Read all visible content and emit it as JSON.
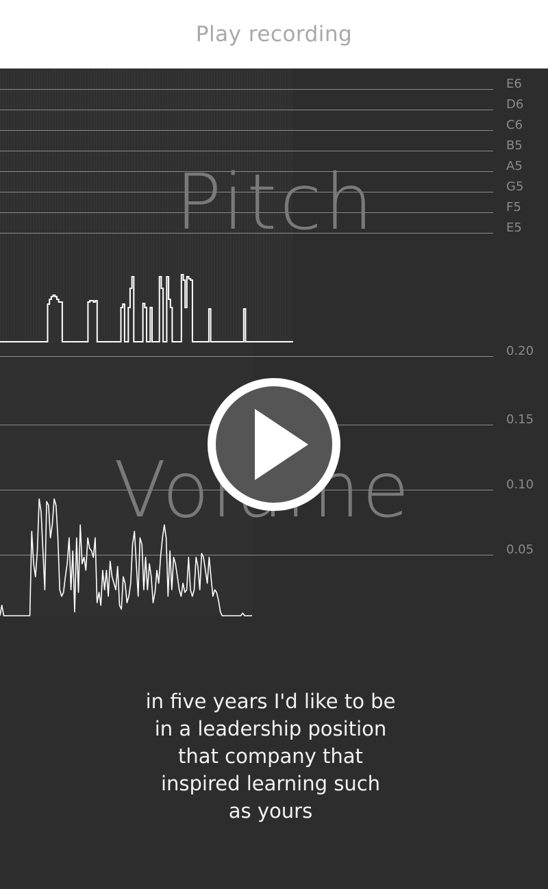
{
  "header": {
    "title": "Play recording"
  },
  "pitch": {
    "label": "Pitch",
    "notes": [
      "E6",
      "D6",
      "C6",
      "B5",
      "A5",
      "G5",
      "F5",
      "E5"
    ],
    "trace": [
      0,
      0,
      0,
      0,
      0,
      0,
      0,
      0,
      0,
      0,
      0,
      0,
      0,
      0,
      0,
      0,
      0,
      0,
      0,
      0,
      0,
      0,
      0,
      0,
      0,
      0,
      0.55,
      0.62,
      0.66,
      0.68,
      0.66,
      0.62,
      0.58,
      0.58,
      0,
      0,
      0,
      0,
      0,
      0,
      0,
      0,
      0,
      0,
      0,
      0,
      0,
      0,
      0.58,
      0.6,
      0.6,
      0.58,
      0.6,
      0,
      0,
      0,
      0,
      0,
      0,
      0,
      0,
      0,
      0,
      0,
      0,
      0,
      0.5,
      0.55,
      0,
      0,
      0.5,
      0.78,
      0.95,
      0,
      0,
      0,
      0,
      0,
      0.56,
      0.5,
      0,
      0,
      0.5,
      0,
      0,
      0,
      0,
      0.95,
      0.78,
      0,
      0,
      0.95,
      0.62,
      0.5,
      0,
      0,
      0,
      0,
      0,
      0.98,
      0.9,
      0.5,
      0.95,
      0.92,
      0.9,
      0,
      0,
      0,
      0,
      0,
      0,
      0,
      0,
      0,
      0.48,
      0,
      0,
      0,
      0,
      0,
      0,
      0,
      0,
      0,
      0,
      0,
      0,
      0,
      0,
      0,
      0,
      0,
      0,
      0.48,
      0,
      0,
      0,
      0,
      0,
      0,
      0,
      0,
      0,
      0,
      0,
      0,
      0,
      0,
      0,
      0,
      0,
      0,
      0,
      0,
      0,
      0,
      0,
      0,
      0,
      0,
      0
    ]
  },
  "volume": {
    "label": "Volume",
    "ticks": [
      "0.20",
      "0.15",
      "0.10",
      "0.05"
    ],
    "ylim": [
      0,
      0.2
    ],
    "trace": [
      0,
      0.008,
      0,
      0,
      0,
      0,
      0,
      0,
      0,
      0,
      0,
      0,
      0,
      0,
      0,
      0,
      0,
      0.065,
      0.04,
      0.03,
      0.05,
      0.09,
      0.08,
      0.05,
      0.02,
      0.088,
      0.085,
      0.06,
      0.07,
      0.09,
      0.085,
      0.06,
      0.02,
      0.015,
      0.018,
      0.03,
      0.04,
      0.06,
      0.02,
      0.05,
      0.003,
      0.06,
      0.018,
      0.07,
      0.04,
      0.045,
      0.035,
      0.06,
      0.052,
      0.05,
      0.045,
      0.06,
      0.01,
      0.018,
      0.008,
      0.035,
      0.02,
      0.035,
      0.015,
      0.042,
      0.03,
      0.025,
      0.02,
      0.038,
      0.008,
      0.005,
      0.03,
      0.025,
      0.01,
      0.015,
      0.025,
      0.055,
      0.065,
      0.04,
      0.015,
      0.06,
      0.055,
      0.02,
      0.045,
      0.02,
      0.04,
      0.03,
      0.01,
      0.018,
      0.035,
      0.025,
      0.045,
      0.06,
      0.07,
      0.06,
      0.015,
      0.05,
      0.02,
      0.045,
      0.04,
      0.03,
      0.02,
      0.015,
      0.025,
      0.018,
      0.02,
      0.045,
      0.02,
      0.015,
      0.02,
      0.045,
      0.038,
      0.02,
      0.048,
      0.045,
      0.035,
      0.025,
      0.045,
      0.03,
      0.015,
      0.02,
      0.018,
      0.012,
      0.003,
      0,
      0,
      0,
      0,
      0,
      0,
      0,
      0,
      0,
      0,
      0,
      0.002,
      0,
      0,
      0,
      0,
      0
    ]
  },
  "play_icon": "play-icon",
  "transcript": {
    "text": "in five years I'd like to be\nin a leadership position\nthat company that\ninspired learning such\nas yours"
  }
}
